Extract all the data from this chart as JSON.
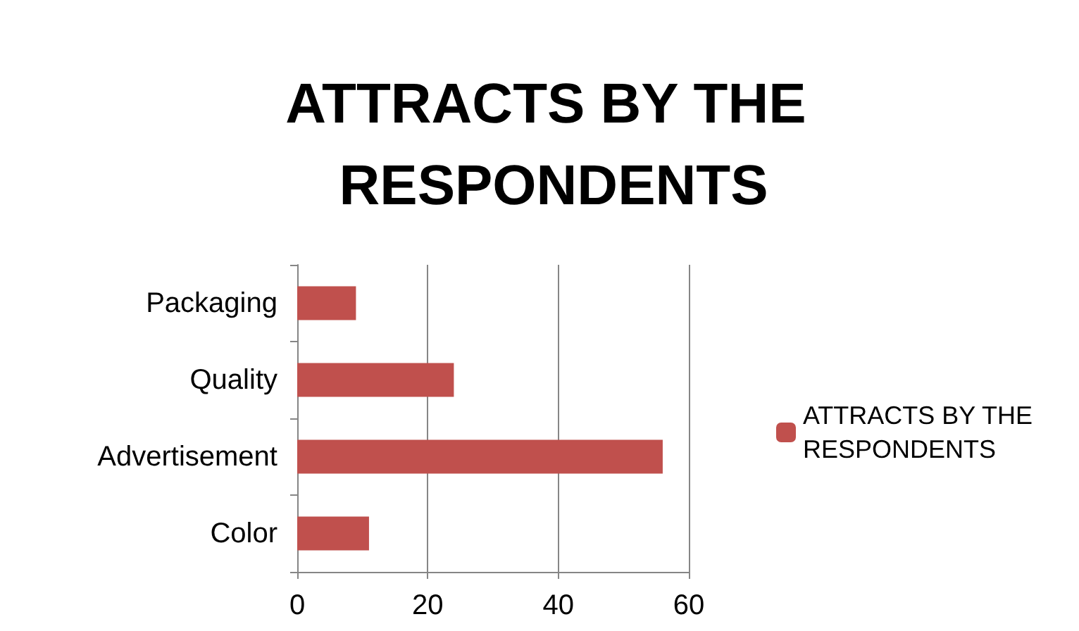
{
  "chart_data": {
    "type": "bar",
    "title": "ATTRACTS BY THE RESPONDENTS",
    "orientation": "horizontal",
    "categories": [
      "Packaging",
      "Quality",
      "Advertisement",
      "Color"
    ],
    "series": [
      {
        "name": "ATTRACTS BY THE RESPONDENTS",
        "color": "#c0504d",
        "values": [
          9,
          24,
          56,
          11
        ]
      }
    ],
    "xlim": [
      0,
      60
    ],
    "xticks": [
      0,
      20,
      40,
      60
    ],
    "grid": "x",
    "legend": "right"
  }
}
